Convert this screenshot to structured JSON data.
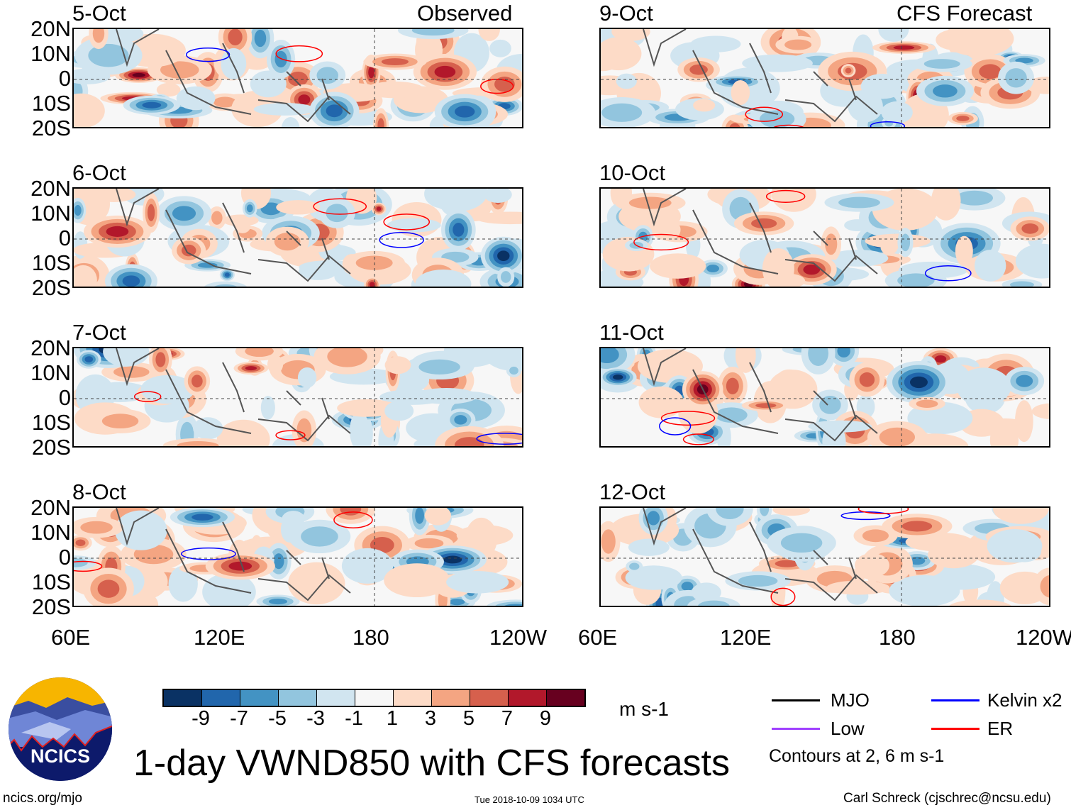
{
  "figure": {
    "title": "1-day VWND850 with CFS forecasts",
    "observed_label": "Observed",
    "forecast_label": "CFS Forecast",
    "units": "m s-1",
    "website": "ncics.org/mjo",
    "timestamp": "Tue 2018-10-09 1034 UTC",
    "author": "Carl Schreck (cjschrec@ncsu.edu)",
    "logo_text": "NCICS"
  },
  "panels_left": [
    {
      "date": "5-Oct"
    },
    {
      "date": "6-Oct"
    },
    {
      "date": "7-Oct"
    },
    {
      "date": "8-Oct"
    }
  ],
  "panels_right": [
    {
      "date": "9-Oct"
    },
    {
      "date": "10-Oct"
    },
    {
      "date": "11-Oct"
    },
    {
      "date": "12-Oct"
    }
  ],
  "lat_labels": [
    "20N",
    "10N",
    "0",
    "10S",
    "20S"
  ],
  "lon_labels": [
    "60E",
    "120E",
    "180",
    "120W"
  ],
  "colorbar": {
    "labels": [
      "-9",
      "-7",
      "-5",
      "-3",
      "-1",
      "1",
      "3",
      "5",
      "7",
      "9"
    ],
    "colors": [
      "#0a3264",
      "#2166ac",
      "#4393c3",
      "#92c5de",
      "#d1e5f0",
      "#f7f7f7",
      "#fddbc7",
      "#f4a582",
      "#d6604d",
      "#b2182b",
      "#67001f"
    ]
  },
  "legend": {
    "items": [
      {
        "label": "MJO",
        "color": "#000000"
      },
      {
        "label": "Kelvin x2",
        "color": "#0000ff"
      },
      {
        "label": "Low",
        "color": "#a040ff"
      },
      {
        "label": "ER",
        "color": "#ff0000"
      }
    ],
    "contours_note": "Contours at 2, 6 m s-1"
  }
}
